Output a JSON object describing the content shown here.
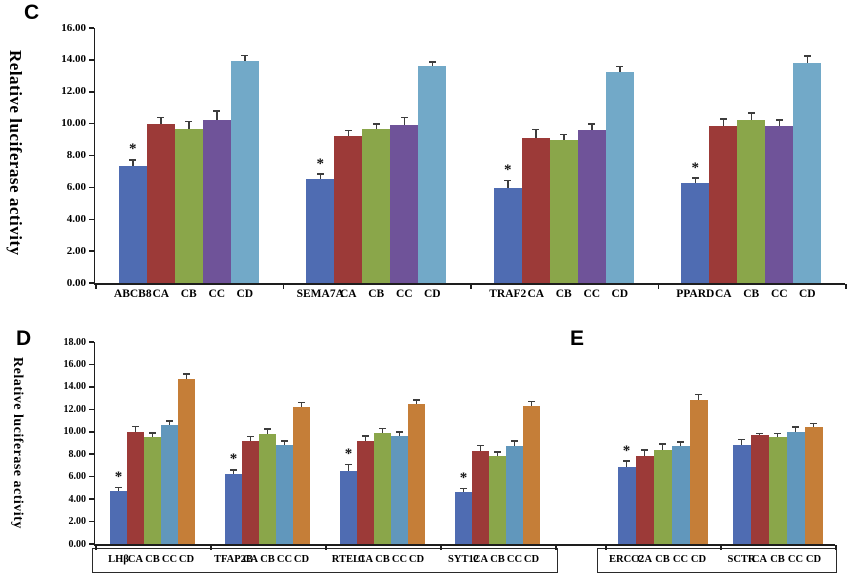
{
  "figure": {
    "background": "#ffffff",
    "panels": [
      {
        "letter": "C",
        "ylabel": "Relative luciferase activity"
      },
      {
        "letter": "D",
        "ylabel": "Relative luciferase activity"
      },
      {
        "letter": "E",
        "ylabel": ""
      }
    ]
  },
  "chart_data": [
    {
      "type": "bar",
      "panel": "C",
      "title": "",
      "xlabel": "",
      "ylabel": "Relative luciferase activity",
      "ylim": [
        0,
        16
      ],
      "ytick_step": 2,
      "ytick_format_decimals": 2,
      "grid": false,
      "legend": "none",
      "category_labels": [
        "CA",
        "CB",
        "CC",
        "CD"
      ],
      "colors": [
        "#4F6CB2",
        "#9C3A38",
        "#8AA64A",
        "#6F5399",
        "#72A9C8"
      ],
      "error_bar_color": "#3d3d3d",
      "significance_marker": "*",
      "groups": [
        {
          "name": "ABCB8",
          "values": [
            7.35,
            10.0,
            9.65,
            10.25,
            13.95
          ],
          "errors": [
            0.35,
            0.35,
            0.45,
            0.5,
            0.3
          ],
          "sig": [
            true,
            false,
            false,
            false,
            false
          ]
        },
        {
          "name": "SEMA7A",
          "values": [
            6.55,
            9.25,
            9.65,
            9.9,
            13.6
          ],
          "errors": [
            0.25,
            0.3,
            0.3,
            0.45,
            0.25
          ],
          "sig": [
            true,
            false,
            false,
            false,
            false
          ]
        },
        {
          "name": "TRAF2",
          "values": [
            5.95,
            9.1,
            8.95,
            9.6,
            13.25
          ],
          "errors": [
            0.45,
            0.5,
            0.35,
            0.35,
            0.3
          ],
          "sig": [
            true,
            false,
            false,
            false,
            false
          ]
        },
        {
          "name": "PPARD",
          "values": [
            6.25,
            9.85,
            10.2,
            9.85,
            13.8
          ],
          "errors": [
            0.3,
            0.4,
            0.45,
            0.35,
            0.4
          ],
          "sig": [
            true,
            false,
            false,
            false,
            false
          ]
        }
      ]
    },
    {
      "type": "bar",
      "panel": "D",
      "title": "",
      "xlabel": "",
      "ylabel": "Relative luciferase activity",
      "ylim": [
        0,
        18
      ],
      "ytick_step": 2,
      "ytick_format_decimals": 2,
      "grid": false,
      "legend": "none",
      "category_labels": [
        "CA",
        "CB",
        "CC",
        "CD"
      ],
      "colors": [
        "#4F6CB2",
        "#9C3A38",
        "#8AA64A",
        "#6197BC",
        "#C57E38"
      ],
      "error_bar_color": "#3d3d3d",
      "significance_marker": "*",
      "groups": [
        {
          "name": "LHβ",
          "values": [
            4.7,
            10.0,
            9.5,
            10.6,
            14.7
          ],
          "errors": [
            0.3,
            0.45,
            0.35,
            0.3,
            0.4
          ],
          "sig": [
            true,
            false,
            false,
            false,
            false
          ]
        },
        {
          "name": "TFAP2B",
          "values": [
            6.2,
            9.2,
            9.8,
            8.8,
            12.2
          ],
          "errors": [
            0.35,
            0.35,
            0.4,
            0.35,
            0.35
          ],
          "sig": [
            true,
            false,
            false,
            false,
            false
          ]
        },
        {
          "name": "RTEL1",
          "values": [
            6.5,
            9.2,
            9.9,
            9.6,
            12.5
          ],
          "errors": [
            0.55,
            0.4,
            0.35,
            0.35,
            0.3
          ],
          "sig": [
            true,
            false,
            false,
            false,
            false
          ]
        },
        {
          "name": "SYT12",
          "values": [
            4.6,
            8.3,
            7.8,
            8.7,
            12.3
          ],
          "errors": [
            0.3,
            0.45,
            0.35,
            0.45,
            0.35
          ],
          "sig": [
            true,
            false,
            false,
            false,
            false
          ]
        }
      ]
    },
    {
      "type": "bar",
      "panel": "E",
      "title": "",
      "xlabel": "",
      "ylabel": "",
      "ylim": [
        0,
        18
      ],
      "ytick_step": 2,
      "ytick_format_decimals": 2,
      "grid": false,
      "legend": "none",
      "category_labels": [
        "CA",
        "CB",
        "CC",
        "CD"
      ],
      "colors": [
        "#4F6CB2",
        "#9C3A38",
        "#8AA64A",
        "#6197BC",
        "#C57E38"
      ],
      "error_bar_color": "#3d3d3d",
      "significance_marker": "*",
      "groups": [
        {
          "name": "ERCC2",
          "values": [
            6.9,
            7.8,
            8.4,
            8.7,
            12.8
          ],
          "errors": [
            0.45,
            0.55,
            0.45,
            0.35,
            0.5
          ],
          "sig": [
            true,
            false,
            false,
            false,
            false
          ]
        },
        {
          "name": "SCTR",
          "values": [
            8.8,
            9.7,
            9.5,
            10.0,
            10.4
          ],
          "errors": [
            0.45,
            0.12,
            0.3,
            0.4,
            0.3
          ],
          "sig": [
            false,
            false,
            false,
            false,
            false
          ]
        }
      ]
    }
  ]
}
